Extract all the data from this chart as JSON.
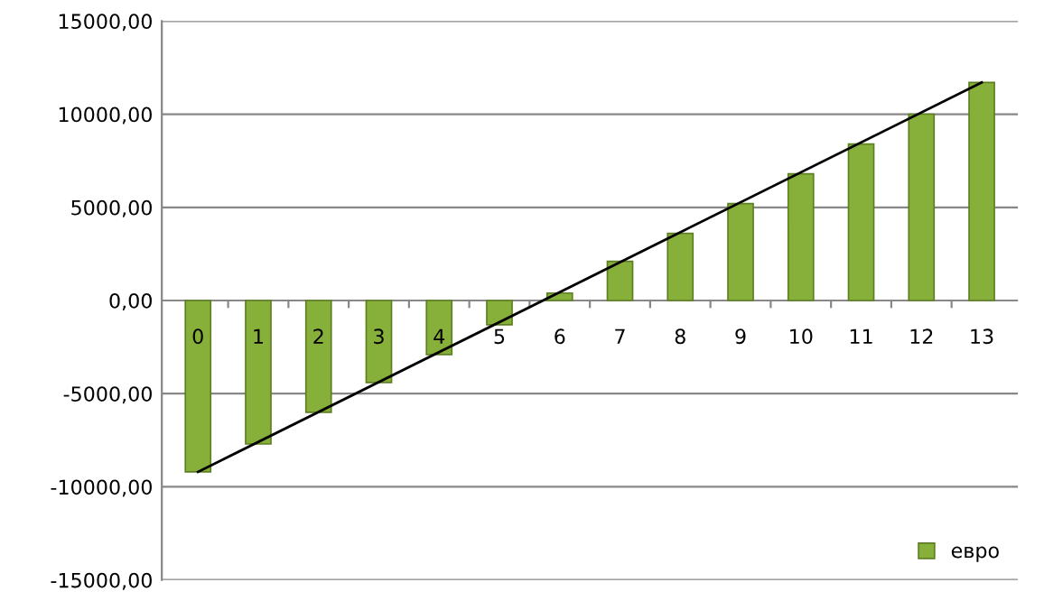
{
  "chart_data": {
    "type": "bar",
    "categories": [
      "0",
      "1",
      "2",
      "3",
      "4",
      "5",
      "6",
      "7",
      "8",
      "9",
      "10",
      "11",
      "12",
      "13"
    ],
    "series": [
      {
        "name": "евро",
        "color": "#86b03a",
        "values": [
          -9200,
          -7700,
          -6000,
          -4400,
          -2900,
          -1300,
          400,
          2100,
          3600,
          5200,
          6800,
          8400,
          10000,
          11700
        ]
      },
      {
        "type": "line",
        "color": "#000000",
        "x": [
          "0",
          "13"
        ],
        "values": [
          -9200,
          11700
        ]
      }
    ],
    "ylim": [
      -15000,
      15000
    ],
    "yticks": [
      {
        "value": -15000,
        "label": "-15000,00"
      },
      {
        "value": -10000,
        "label": "-10000,00"
      },
      {
        "value": -5000,
        "label": "-5000,00"
      },
      {
        "value": 0,
        "label": "0,00"
      },
      {
        "value": 5000,
        "label": "5000,00"
      },
      {
        "value": 10000,
        "label": "10000,00"
      },
      {
        "value": 15000,
        "label": "15000,00"
      }
    ],
    "grid": "y",
    "legend": "bottom right"
  }
}
